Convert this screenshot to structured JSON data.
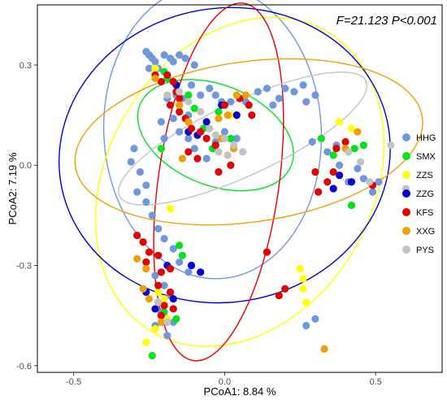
{
  "chart_data": {
    "type": "scatter",
    "annotation": "F=21.123  P<0.001",
    "xlabel": "PCoA1:  8.84 %",
    "ylabel": "PCoA2:  7.19 %",
    "xlim": [
      -0.62,
      0.72
    ],
    "ylim": [
      -0.62,
      0.48
    ],
    "xticks": [
      -0.5,
      0.0,
      0.5
    ],
    "xtick_labels": [
      "-0.5",
      "0.0",
      "0.5"
    ],
    "yticks": [
      -0.6,
      -0.3,
      0.0,
      0.3
    ],
    "ytick_labels": [
      "-0.6",
      "-0.3",
      "0.0",
      "0.3"
    ],
    "grid": false,
    "legend_position": "right",
    "series": [
      {
        "name": "HHG",
        "color": "#6f97dd",
        "ellipse": {
          "cx": -0.04,
          "cy": 0.1,
          "rx": 0.36,
          "ry": 0.44,
          "angle_deg": -3
        },
        "points": [
          [
            -0.26,
            0.34
          ],
          [
            -0.25,
            0.33
          ],
          [
            -0.24,
            0.32
          ],
          [
            -0.23,
            0.31
          ],
          [
            -0.25,
            0.29
          ],
          [
            -0.22,
            0.29
          ],
          [
            -0.2,
            0.33
          ],
          [
            -0.18,
            0.32
          ],
          [
            -0.17,
            0.31
          ],
          [
            -0.15,
            0.33
          ],
          [
            -0.13,
            0.32
          ],
          [
            -0.1,
            0.3
          ],
          [
            -0.11,
            0.24
          ],
          [
            -0.08,
            0.21
          ],
          [
            -0.05,
            0.23
          ],
          [
            -0.03,
            0.21
          ],
          [
            -0.01,
            0.19
          ],
          [
            0.02,
            0.19
          ],
          [
            0.07,
            0.19
          ],
          [
            0.11,
            0.22
          ],
          [
            0.14,
            0.23
          ],
          [
            0.18,
            0.2
          ],
          [
            0.2,
            0.23
          ],
          [
            0.23,
            0.22
          ],
          [
            0.26,
            0.24
          ],
          [
            0.3,
            0.21
          ],
          [
            0.27,
            0.19
          ],
          [
            0.16,
            0.18
          ],
          [
            -0.19,
            0.2
          ],
          [
            -0.16,
            0.21
          ],
          [
            -0.14,
            0.2
          ],
          [
            -0.12,
            0.15
          ],
          [
            -0.17,
            0.14
          ],
          [
            -0.21,
            0.13
          ],
          [
            -0.15,
            0.1
          ],
          [
            -0.12,
            0.08
          ],
          [
            -0.1,
            0.05
          ],
          [
            -0.06,
            0.02
          ],
          [
            -0.03,
            0.07
          ],
          [
            0.0,
            0.1
          ],
          [
            0.04,
            0.08
          ],
          [
            -0.2,
            0.08
          ],
          [
            -0.3,
            0.05
          ],
          [
            -0.31,
            0.01
          ],
          [
            -0.28,
            -0.02
          ],
          [
            -0.26,
            -0.06
          ],
          [
            -0.29,
            -0.08
          ],
          [
            -0.26,
            -0.11
          ],
          [
            -0.24,
            -0.15
          ],
          [
            -0.22,
            -0.19
          ],
          [
            -0.2,
            -0.22
          ],
          [
            -0.17,
            -0.25
          ],
          [
            -0.15,
            -0.29
          ],
          [
            -0.12,
            -0.32
          ],
          [
            -0.23,
            -0.33
          ],
          [
            -0.2,
            -0.36
          ],
          [
            -0.18,
            -0.39
          ],
          [
            -0.21,
            -0.44
          ],
          [
            -0.23,
            -0.48
          ],
          [
            -0.17,
            -0.47
          ],
          [
            -0.19,
            -0.51
          ],
          [
            0.27,
            -0.48
          ],
          [
            0.3,
            -0.46
          ],
          [
            0.29,
            0.07
          ],
          [
            0.34,
            0.04
          ],
          [
            0.38,
            0.0
          ],
          [
            0.41,
            -0.05
          ],
          [
            0.46,
            -0.04
          ],
          [
            0.51,
            -0.05
          ],
          [
            0.49,
            -0.08
          ],
          [
            0.37,
            0.06
          ],
          [
            0.44,
            -0.01
          ]
        ]
      },
      {
        "name": "SMX",
        "color": "#00e31b",
        "ellipse": {
          "cx": -0.03,
          "cy": 0.09,
          "rx": 0.27,
          "ry": 0.15,
          "angle_deg": 22
        },
        "points": [
          [
            -0.2,
            0.28
          ],
          [
            -0.12,
            0.21
          ],
          [
            -0.1,
            0.17
          ],
          [
            -0.07,
            0.11
          ],
          [
            -0.02,
            0.16
          ],
          [
            -0.04,
            0.05
          ],
          [
            0.02,
            0.08
          ],
          [
            -0.21,
            0.05
          ],
          [
            -0.15,
            -0.24
          ],
          [
            -0.14,
            -0.27
          ],
          [
            -0.22,
            -0.41
          ],
          [
            -0.2,
            -0.44
          ],
          [
            -0.16,
            -0.46
          ],
          [
            -0.24,
            -0.57
          ],
          [
            0.32,
            0.08
          ],
          [
            0.36,
            0.03
          ],
          [
            0.46,
            0.06
          ],
          [
            0.43,
            0.05
          ],
          [
            0.42,
            -0.12
          ],
          [
            -0.19,
            0.26
          ]
        ]
      },
      {
        "name": "ZZS",
        "color": "#ffff00",
        "ellipse": {
          "cx": 0.05,
          "cy": -0.05,
          "rx": 0.44,
          "ry": 0.52,
          "angle_deg": 30
        },
        "points": [
          [
            0.38,
            0.13
          ],
          [
            0.42,
            0.11
          ],
          [
            0.25,
            -0.31
          ],
          [
            0.26,
            -0.34
          ],
          [
            0.26,
            -0.37
          ],
          [
            0.27,
            -0.41
          ],
          [
            -0.19,
            -0.46
          ],
          [
            -0.23,
            -0.49
          ],
          [
            -0.26,
            -0.53
          ],
          [
            -0.18,
            -0.13
          ],
          [
            -0.22,
            -0.38
          ],
          [
            -0.2,
            -0.4
          ],
          [
            -0.23,
            0.29
          ],
          [
            0.02,
            0.15
          ]
        ]
      },
      {
        "name": "ZZG",
        "color": "#0000d0",
        "ellipse": {
          "cx": 0.0,
          "cy": 0.03,
          "rx": 0.55,
          "ry": 0.44,
          "angle_deg": -10
        },
        "points": [
          [
            -0.16,
            0.24
          ],
          [
            -0.12,
            0.1
          ],
          [
            -0.09,
            0.09
          ],
          [
            -0.06,
            0.13
          ],
          [
            -0.01,
            0.18
          ],
          [
            0.04,
            0.15
          ],
          [
            0.38,
            -0.03
          ],
          [
            0.42,
            -0.05
          ],
          [
            0.36,
            -0.07
          ],
          [
            -0.19,
            -0.3
          ],
          [
            -0.11,
            -0.3
          ],
          [
            -0.08,
            -0.32
          ],
          [
            -0.26,
            -0.38
          ],
          [
            -0.17,
            -0.4
          ],
          [
            -0.23,
            -0.43
          ]
        ]
      },
      {
        "name": "KFS",
        "color": "#e30000",
        "ellipse": {
          "cx": -0.02,
          "cy": -0.05,
          "rx": 0.2,
          "ry": 0.54,
          "angle_deg": 8
        },
        "points": [
          [
            -0.23,
            0.27
          ],
          [
            -0.21,
            0.25
          ],
          [
            -0.19,
            0.27
          ],
          [
            -0.17,
            0.25
          ],
          [
            -0.16,
            0.22
          ],
          [
            -0.15,
            0.2
          ],
          [
            -0.18,
            0.18
          ],
          [
            -0.15,
            0.16
          ],
          [
            -0.13,
            0.14
          ],
          [
            -0.11,
            0.11
          ],
          [
            -0.08,
            0.1
          ],
          [
            -0.06,
            0.08
          ],
          [
            -0.03,
            0.06
          ],
          [
            -0.12,
            0.04
          ],
          [
            -0.09,
            0.02
          ],
          [
            0.0,
            0.18
          ],
          [
            0.05,
            0.2
          ],
          [
            0.08,
            0.18
          ],
          [
            0.09,
            0.15
          ],
          [
            -0.29,
            -0.21
          ],
          [
            -0.27,
            -0.23
          ],
          [
            -0.25,
            -0.26
          ],
          [
            -0.22,
            -0.27
          ],
          [
            -0.26,
            -0.29
          ],
          [
            -0.21,
            -0.32
          ],
          [
            -0.18,
            -0.31
          ],
          [
            -0.22,
            -0.36
          ],
          [
            -0.18,
            -0.38
          ],
          [
            -0.2,
            -0.42
          ],
          [
            -0.17,
            -0.43
          ],
          [
            -0.21,
            -0.45
          ],
          [
            0.14,
            -0.26
          ],
          [
            0.2,
            -0.37
          ],
          [
            0.18,
            -0.39
          ],
          [
            0.3,
            -0.02
          ],
          [
            0.34,
            -0.05
          ],
          [
            0.36,
            -0.02
          ],
          [
            0.49,
            -0.06
          ],
          [
            0.31,
            -0.08
          ],
          [
            0.37,
            0.05
          ],
          [
            0.4,
            0.07
          ],
          [
            0.02,
            0.0
          ],
          [
            -0.02,
            -0.02
          ]
        ]
      },
      {
        "name": "XXG",
        "color": "#f29e00",
        "ellipse": {
          "cx": 0.08,
          "cy": 0.07,
          "rx": 0.58,
          "ry": 0.24,
          "angle_deg": -8
        },
        "points": [
          [
            -0.23,
            0.26
          ],
          [
            -0.15,
            0.18
          ],
          [
            -0.12,
            0.13
          ],
          [
            -0.02,
            0.14
          ],
          [
            0.01,
            0.15
          ],
          [
            0.04,
            0.21
          ],
          [
            0.07,
            0.21
          ],
          [
            0.03,
            0.05
          ],
          [
            -0.01,
            0.08
          ],
          [
            0.44,
            0.1
          ],
          [
            0.4,
            0.05
          ],
          [
            -0.29,
            -0.28
          ],
          [
            -0.26,
            -0.31
          ],
          [
            -0.27,
            -0.37
          ],
          [
            -0.25,
            -0.4
          ],
          [
            -0.21,
            -0.47
          ],
          [
            0.33,
            -0.55
          ],
          [
            -0.14,
            0.02
          ]
        ]
      },
      {
        "name": "PYS",
        "color": "#c2c2c2",
        "ellipse": {
          "cx": 0.06,
          "cy": 0.08,
          "rx": 0.45,
          "ry": 0.11,
          "angle_deg": -25
        },
        "points": [
          [
            -0.15,
            0.22
          ],
          [
            -0.12,
            0.19
          ],
          [
            -0.08,
            0.16
          ],
          [
            -0.05,
            0.11
          ],
          [
            -0.03,
            0.09
          ],
          [
            0.0,
            0.08
          ],
          [
            0.03,
            0.06
          ],
          [
            -0.02,
            0.04
          ],
          [
            0.01,
            0.03
          ],
          [
            0.06,
            0.04
          ],
          [
            0.41,
            0.04
          ],
          [
            0.45,
            0.01
          ],
          [
            0.55,
            0.06
          ],
          [
            0.6,
            -0.07
          ],
          [
            0.48,
            -0.05
          ],
          [
            -0.19,
            -0.47
          ],
          [
            -0.22,
            -0.41
          ],
          [
            -0.19,
            0.21
          ]
        ]
      }
    ]
  }
}
